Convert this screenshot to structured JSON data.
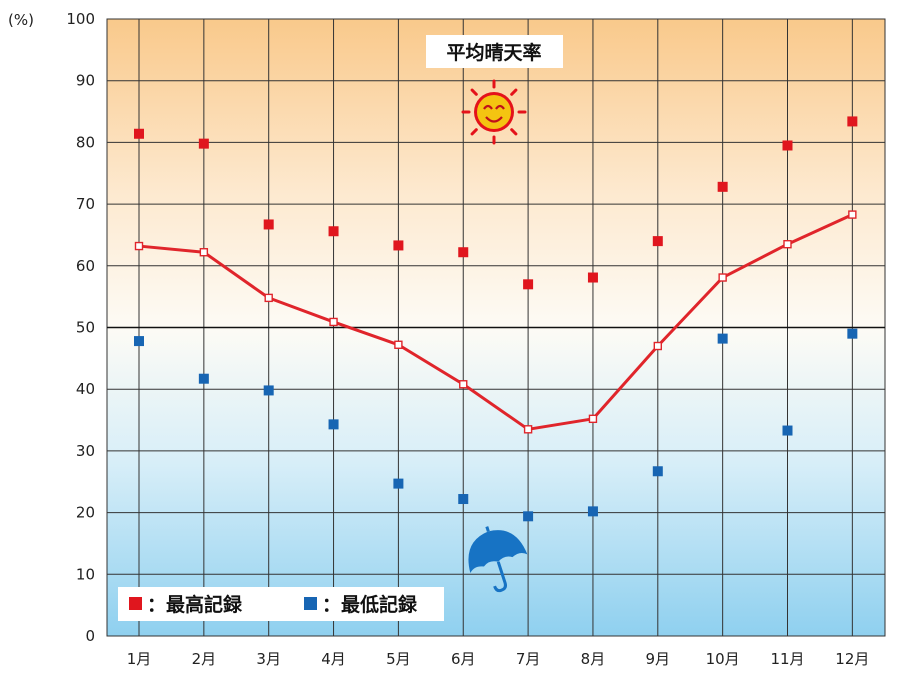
{
  "chart_data": {
    "type": "line",
    "title": "平均晴天率",
    "y_unit": "(%)",
    "categories": [
      "1月",
      "2月",
      "3月",
      "4月",
      "5月",
      "6月",
      "7月",
      "8月",
      "9月",
      "10月",
      "11月",
      "12月"
    ],
    "ylim": [
      0,
      100
    ],
    "yticks": [
      "0",
      "10",
      "20",
      "30",
      "40",
      "50",
      "60",
      "70",
      "80",
      "90",
      "100"
    ],
    "grid": true,
    "reference_line": 50,
    "series": [
      {
        "key": "avg",
        "style": "line",
        "color": "#e0252b",
        "values": [
          63.2,
          62.2,
          54.8,
          50.9,
          47.2,
          40.8,
          33.5,
          35.2,
          47.0,
          58.1,
          63.5,
          68.3
        ]
      },
      {
        "key": "max",
        "name": "最高記録",
        "style": "markers",
        "color": "#e0161e",
        "values": [
          81.4,
          79.8,
          66.7,
          65.6,
          63.3,
          62.2,
          57.0,
          58.1,
          64.0,
          72.8,
          79.5,
          83.4
        ]
      },
      {
        "key": "min",
        "name": "最低記録",
        "style": "markers",
        "color": "#1765b3",
        "values": [
          47.8,
          41.7,
          39.8,
          34.3,
          24.7,
          22.2,
          19.4,
          20.2,
          26.7,
          48.2,
          33.3,
          49.0
        ]
      }
    ],
    "legend": [
      {
        "label": "最高記録",
        "prefix": "■：",
        "color": "#e0161e"
      },
      {
        "label": "最低記録",
        "prefix": "■：",
        "color": "#1765b3"
      }
    ],
    "legend_position": "bottom-left",
    "icons": [
      "smiling-sun-icon",
      "umbrella-icon"
    ]
  }
}
